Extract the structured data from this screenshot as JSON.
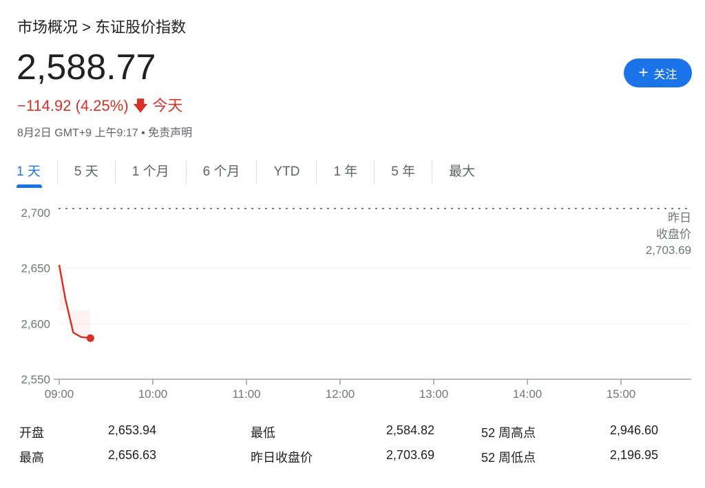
{
  "breadcrumb": {
    "parent": "市场概况",
    "separator": ">",
    "current": "东证股价指数"
  },
  "price": "2,588.77",
  "change": {
    "value": "−114.92 (4.25%)",
    "arrow": "arrow-down-icon",
    "period": "今天",
    "color": "#d93025"
  },
  "meta": {
    "date": "8月2日 GMT+9 上午9:17",
    "sep": "•",
    "disclaimer": "免责声明"
  },
  "follow_button": {
    "icon": "plus-icon",
    "label": "关注",
    "color": "#1a73e8"
  },
  "tabs": [
    {
      "label": "1 天",
      "active": true
    },
    {
      "label": "5 天"
    },
    {
      "label": "1 个月"
    },
    {
      "label": "6 个月"
    },
    {
      "label": "YTD"
    },
    {
      "label": "1 年"
    },
    {
      "label": "5 年"
    },
    {
      "label": "最大"
    }
  ],
  "prev_close_label": {
    "line1": "昨日",
    "line2": "收盘价",
    "value": "2,703.69"
  },
  "chart_data": {
    "type": "line",
    "x_ticks": [
      "09:00",
      "10:00",
      "11:00",
      "12:00",
      "13:00",
      "14:00",
      "15:00"
    ],
    "y_ticks": [
      "2,700",
      "2,650",
      "2,600",
      "2,550"
    ],
    "ylim": [
      2550,
      2700
    ],
    "xlim": [
      "09:00",
      "15:40"
    ],
    "series": [
      {
        "color": "#d93025",
        "points": [
          [
            "09:00",
            2653
          ],
          [
            "09:04",
            2622
          ],
          [
            "09:09",
            2592
          ],
          [
            "09:14",
            2588
          ],
          [
            "09:20",
            2587
          ]
        ]
      }
    ],
    "reference_line": {
      "value": 2703.69,
      "style": "dotted"
    },
    "grid": true
  },
  "stats": [
    [
      {
        "label": "开盘",
        "value": "2,653.94"
      },
      {
        "label": "最低",
        "value": "2,584.82"
      },
      {
        "label": "52 周高点",
        "value": "2,946.60"
      }
    ],
    [
      {
        "label": "最高",
        "value": "2,656.63"
      },
      {
        "label": "昨日收盘价",
        "value": "2,703.69"
      },
      {
        "label": "52 周低点",
        "value": "2,196.95"
      }
    ]
  ]
}
